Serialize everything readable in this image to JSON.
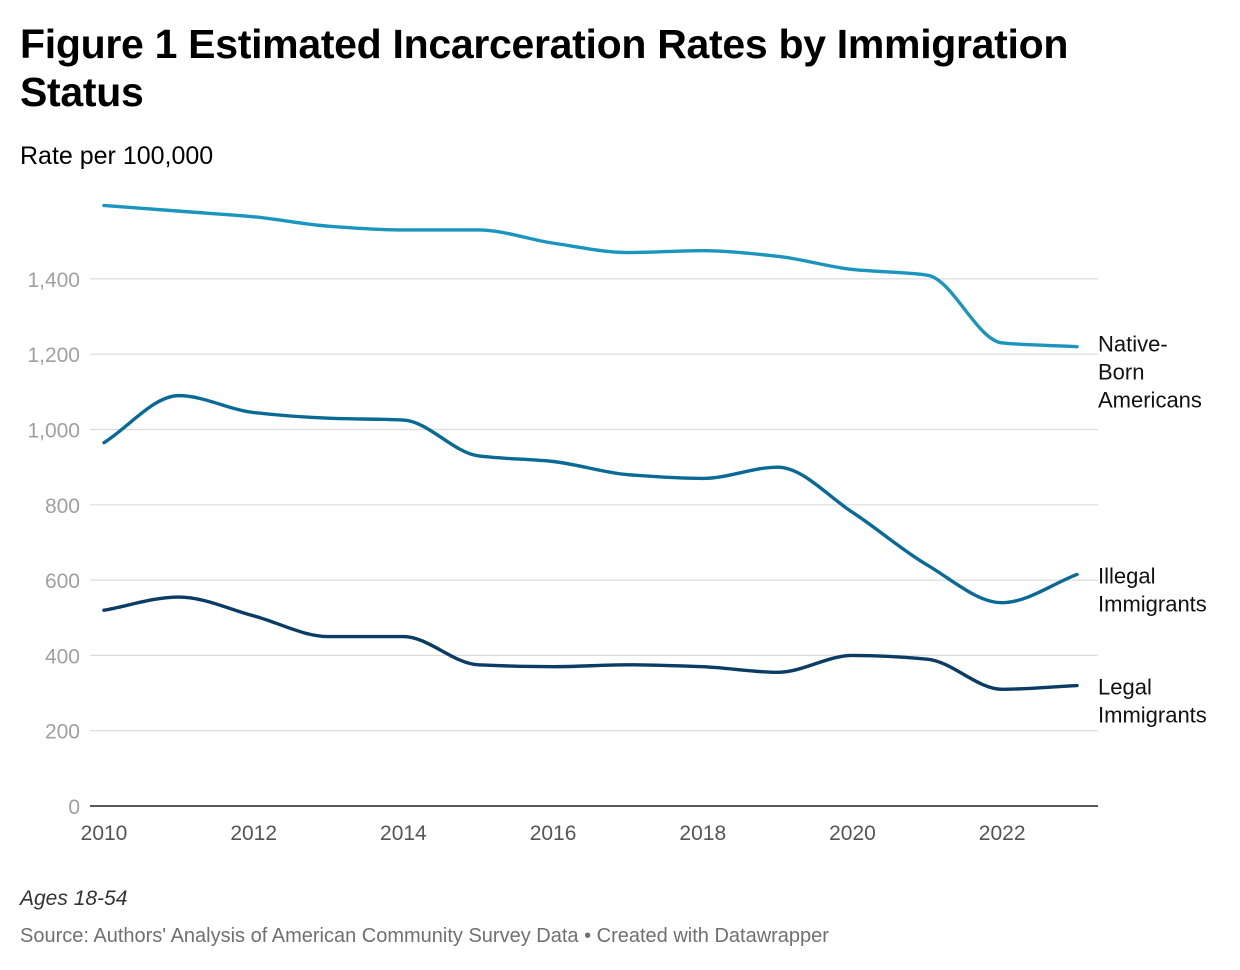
{
  "chart_data": {
    "type": "line",
    "title": "Figure 1 Estimated Incarceration Rates by Immigration Status",
    "subtitle": "Rate per 100,000",
    "note": "Ages 18-54",
    "source": "Source: Authors' Analysis of American Community Survey Data • Created with Datawrapper",
    "x": [
      2010,
      2011,
      2012,
      2013,
      2014,
      2015,
      2016,
      2017,
      2018,
      2019,
      2020,
      2021,
      2022,
      2023
    ],
    "xlim": [
      2010,
      2023
    ],
    "x_ticks": [
      "2010",
      "2012",
      "2014",
      "2016",
      "2018",
      "2020",
      "2022"
    ],
    "x_tick_values": [
      2010,
      2012,
      2014,
      2016,
      2018,
      2020,
      2022
    ],
    "ylim": [
      0,
      1600
    ],
    "y_ticks": [
      "0",
      "200",
      "400",
      "600",
      "800",
      "1,000",
      "1,200",
      "1,400"
    ],
    "y_tick_values": [
      0,
      200,
      400,
      600,
      800,
      1000,
      1200,
      1400
    ],
    "grid": true,
    "legend": "direct labels at line ends",
    "series": [
      {
        "name": "Native-Born Americans",
        "label_lines": [
          "Native-",
          "Born",
          "Americans"
        ],
        "color": "#1b95bd",
        "values": [
          1595,
          1580,
          1565,
          1540,
          1530,
          1530,
          1495,
          1470,
          1475,
          1460,
          1425,
          1410,
          1230,
          1220
        ]
      },
      {
        "name": "Illegal Immigrants",
        "label_lines": [
          "Illegal",
          "Immigrants"
        ],
        "color": "#0a6a96",
        "values": [
          965,
          1090,
          1045,
          1030,
          1025,
          930,
          915,
          880,
          870,
          900,
          780,
          640,
          540,
          615
        ]
      },
      {
        "name": "Legal Immigrants",
        "label_lines": [
          "Legal",
          "Immigrants"
        ],
        "color": "#0b3c64",
        "values": [
          520,
          555,
          505,
          450,
          450,
          375,
          370,
          375,
          370,
          355,
          400,
          390,
          310,
          320
        ]
      }
    ]
  }
}
